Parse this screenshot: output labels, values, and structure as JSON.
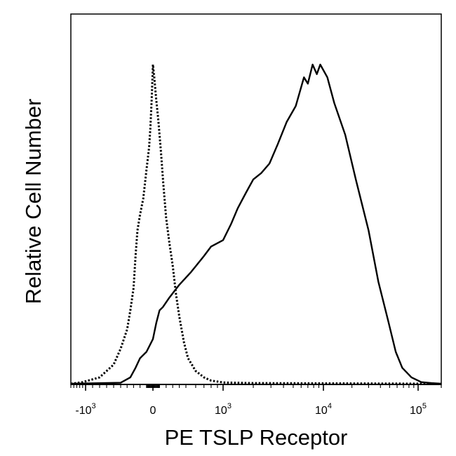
{
  "chart_data": {
    "type": "line",
    "title": "",
    "xlabel": "PE TSLP Receptor",
    "ylabel": "Relative Cell Number",
    "x_scale": "biexponential",
    "xlim": [
      -1500,
      200000
    ],
    "ylim": [
      0,
      100
    ],
    "x_tick_labels": [
      {
        "value": -1000,
        "base": "-10",
        "exp": "3"
      },
      {
        "value": 0,
        "base": "0",
        "exp": ""
      },
      {
        "value": 1000,
        "base": "10",
        "exp": "3"
      },
      {
        "value": 10000,
        "base": "10",
        "exp": "4"
      },
      {
        "value": 100000,
        "base": "10",
        "exp": "5"
      }
    ],
    "series": [
      {
        "style": "dotted",
        "color": "#000000",
        "points": [
          [
            -1500,
            0
          ],
          [
            -1100,
            0.5
          ],
          [
            -800,
            2
          ],
          [
            -600,
            6
          ],
          [
            -500,
            11
          ],
          [
            -400,
            17
          ],
          [
            -350,
            23
          ],
          [
            -300,
            30
          ],
          [
            -270,
            40
          ],
          [
            -240,
            48
          ],
          [
            -200,
            53
          ],
          [
            -150,
            58
          ],
          [
            -100,
            67
          ],
          [
            -60,
            74
          ],
          [
            -40,
            80
          ],
          [
            -20,
            89
          ],
          [
            0,
            100
          ],
          [
            20,
            96
          ],
          [
            50,
            89
          ],
          [
            80,
            83
          ],
          [
            120,
            73
          ],
          [
            160,
            62
          ],
          [
            200,
            52
          ],
          [
            250,
            44
          ],
          [
            300,
            37
          ],
          [
            350,
            28
          ],
          [
            400,
            21
          ],
          [
            470,
            13
          ],
          [
            520,
            8
          ],
          [
            600,
            4
          ],
          [
            700,
            2
          ],
          [
            800,
            1
          ],
          [
            1000,
            0.4
          ],
          [
            2000,
            0.2
          ],
          [
            200000,
            0
          ]
        ]
      },
      {
        "style": "solid",
        "color": "#000000",
        "points": [
          [
            -1500,
            0
          ],
          [
            -500,
            0.3
          ],
          [
            -350,
            2
          ],
          [
            -270,
            5
          ],
          [
            -200,
            8
          ],
          [
            -100,
            10
          ],
          [
            0,
            14
          ],
          [
            50,
            19
          ],
          [
            100,
            23
          ],
          [
            150,
            24
          ],
          [
            250,
            27
          ],
          [
            400,
            31
          ],
          [
            550,
            35
          ],
          [
            700,
            40
          ],
          [
            800,
            43
          ],
          [
            1000,
            45
          ],
          [
            1200,
            50
          ],
          [
            1400,
            55
          ],
          [
            1700,
            60
          ],
          [
            2000,
            64
          ],
          [
            2400,
            66
          ],
          [
            2900,
            69
          ],
          [
            3500,
            75
          ],
          [
            4300,
            82
          ],
          [
            5300,
            87
          ],
          [
            6400,
            96
          ],
          [
            7000,
            94
          ],
          [
            7800,
            100
          ],
          [
            8600,
            97
          ],
          [
            9300,
            100
          ],
          [
            11000,
            96
          ],
          [
            13000,
            88
          ],
          [
            17000,
            78
          ],
          [
            22000,
            64
          ],
          [
            30000,
            48
          ],
          [
            38000,
            32
          ],
          [
            48000,
            20
          ],
          [
            58000,
            10
          ],
          [
            68000,
            5
          ],
          [
            85000,
            2
          ],
          [
            110000,
            0.5
          ],
          [
            150000,
            0.2
          ],
          [
            200000,
            0
          ]
        ]
      }
    ],
    "grid": false,
    "legend": "none"
  }
}
